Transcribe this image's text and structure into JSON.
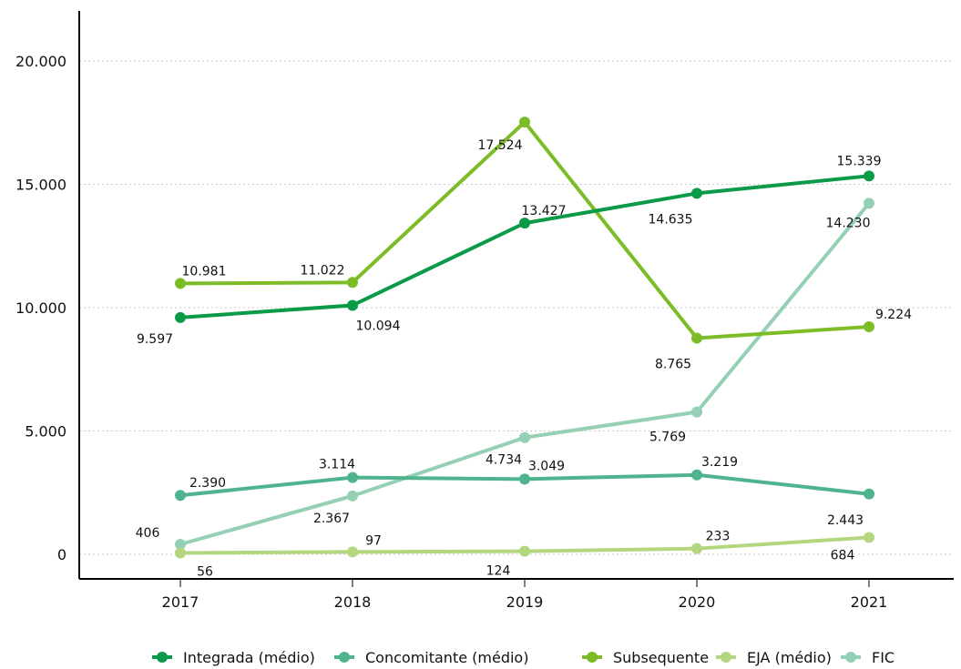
{
  "chart_data": {
    "type": "line",
    "categories": [
      "2017",
      "2018",
      "2019",
      "2020",
      "2021"
    ],
    "ylim": [
      0,
      20000
    ],
    "yticks": [
      0,
      5000,
      10000,
      15000,
      20000
    ],
    "ytick_labels": [
      "0",
      "5.000",
      "10.000",
      "15.000",
      "20.000"
    ],
    "grid": true,
    "legend_position": "bottom",
    "series": [
      {
        "name": "Integrada (médio)",
        "color": "#0a9a48",
        "values": [
          9597,
          10094,
          13427,
          14635,
          15339
        ],
        "labels": [
          "9.597",
          "10.094",
          "13.427",
          "14.635",
          "15.339"
        ]
      },
      {
        "name": "Concomitante (médio)",
        "color": "#4fb38d",
        "values": [
          2390,
          3114,
          3049,
          3219,
          2443
        ],
        "labels": [
          "2.390",
          "3.114",
          "3.049",
          "3.219",
          "2.443"
        ]
      },
      {
        "name": "Subsequente",
        "color": "#7cbd27",
        "values": [
          10981,
          11022,
          17524,
          8765,
          9224
        ],
        "labels": [
          "10.981",
          "11.022",
          "17.524",
          "8.765",
          "9.224"
        ]
      },
      {
        "name": "EJA (médio)",
        "color": "#b3d67f",
        "values": [
          56,
          97,
          124,
          233,
          684
        ],
        "labels": [
          "56",
          "97",
          "124",
          "233",
          "684"
        ]
      },
      {
        "name": "FIC",
        "color": "#95cfb4",
        "values": [
          406,
          2367,
          4734,
          5769,
          14230
        ],
        "labels": [
          "406",
          "2.367",
          "4.734",
          "5.769",
          "14.230"
        ]
      }
    ]
  }
}
